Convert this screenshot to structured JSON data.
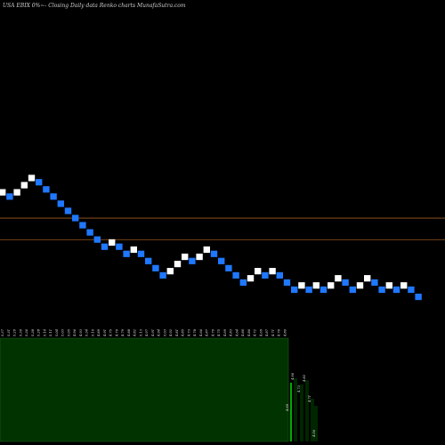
{
  "header": {
    "title": "USA EBIX  0%~-  Closing Daily data  Renko  charts MunafaSutra.com"
  },
  "colors": {
    "background": "#000000",
    "up_brick": "#ffffff",
    "down_brick": "#1f78ff",
    "level_line": "#a15a1e",
    "volume_area": "#003300",
    "volume_border": "#1a5e1a",
    "volume_spike": "#00aa00"
  },
  "chart_data": {
    "type": "renko",
    "title": "USA EBIX  0%~-  Closing Daily data  Renko  charts MunafaSutra.com",
    "brick_size": 0.05,
    "y_range": [
      4.5,
      5.55
    ],
    "levels": [
      5.17,
      5.02
    ],
    "bricks": [
      {
        "close": 5.35,
        "dir": "up"
      },
      {
        "close": 5.3,
        "dir": "down"
      },
      {
        "close": 5.35,
        "dir": "up"
      },
      {
        "close": 5.4,
        "dir": "up"
      },
      {
        "close": 5.45,
        "dir": "up"
      },
      {
        "close": 5.4,
        "dir": "down"
      },
      {
        "close": 5.35,
        "dir": "down"
      },
      {
        "close": 5.3,
        "dir": "down"
      },
      {
        "close": 5.25,
        "dir": "down"
      },
      {
        "close": 5.2,
        "dir": "down"
      },
      {
        "close": 5.15,
        "dir": "down"
      },
      {
        "close": 5.1,
        "dir": "down"
      },
      {
        "close": 5.05,
        "dir": "down"
      },
      {
        "close": 5.0,
        "dir": "down"
      },
      {
        "close": 4.95,
        "dir": "down"
      },
      {
        "close": 5.0,
        "dir": "up"
      },
      {
        "close": 4.95,
        "dir": "down"
      },
      {
        "close": 4.9,
        "dir": "down"
      },
      {
        "close": 4.95,
        "dir": "up"
      },
      {
        "close": 4.9,
        "dir": "down"
      },
      {
        "close": 4.85,
        "dir": "down"
      },
      {
        "close": 4.8,
        "dir": "down"
      },
      {
        "close": 4.75,
        "dir": "down"
      },
      {
        "close": 4.8,
        "dir": "up"
      },
      {
        "close": 4.85,
        "dir": "up"
      },
      {
        "close": 4.9,
        "dir": "up"
      },
      {
        "close": 4.85,
        "dir": "down"
      },
      {
        "close": 4.9,
        "dir": "up"
      },
      {
        "close": 4.95,
        "dir": "up"
      },
      {
        "close": 4.9,
        "dir": "down"
      },
      {
        "close": 4.85,
        "dir": "down"
      },
      {
        "close": 4.8,
        "dir": "down"
      },
      {
        "close": 4.75,
        "dir": "down"
      },
      {
        "close": 4.7,
        "dir": "down"
      },
      {
        "close": 4.75,
        "dir": "up"
      },
      {
        "close": 4.8,
        "dir": "up"
      },
      {
        "close": 4.75,
        "dir": "down"
      },
      {
        "close": 4.8,
        "dir": "up"
      },
      {
        "close": 4.75,
        "dir": "down"
      },
      {
        "close": 4.7,
        "dir": "down"
      },
      {
        "close": 4.65,
        "dir": "down"
      },
      {
        "close": 4.7,
        "dir": "up"
      },
      {
        "close": 4.65,
        "dir": "down"
      },
      {
        "close": 4.7,
        "dir": "up"
      },
      {
        "close": 4.65,
        "dir": "down"
      },
      {
        "close": 4.7,
        "dir": "up"
      },
      {
        "close": 4.75,
        "dir": "up"
      },
      {
        "close": 4.7,
        "dir": "down"
      },
      {
        "close": 4.65,
        "dir": "down"
      },
      {
        "close": 4.7,
        "dir": "up"
      },
      {
        "close": 4.75,
        "dir": "up"
      },
      {
        "close": 4.7,
        "dir": "down"
      },
      {
        "close": 4.65,
        "dir": "down"
      },
      {
        "close": 4.7,
        "dir": "up"
      },
      {
        "close": 4.65,
        "dir": "down"
      },
      {
        "close": 4.7,
        "dir": "up"
      },
      {
        "close": 4.65,
        "dir": "down"
      },
      {
        "close": 4.6,
        "dir": "down"
      }
    ],
    "x_tick_labels": [
      "5.37",
      "5.31",
      "5.29",
      "5.39",
      "5.36",
      "5.38",
      "5.28",
      "5.14",
      "5.11",
      "5.04",
      "5.03",
      "5.05",
      "4.96",
      "4.93",
      "5.34",
      "5.10",
      "4.89",
      "4.91",
      "4.75",
      "4.79",
      "4.79",
      "4.88",
      "4.82",
      "5.13",
      "4.97",
      "4.91",
      "4.94",
      "5.03",
      "4.92",
      "4.81",
      "4.85",
      "4.73",
      "4.78",
      "4.66",
      "4.87",
      "4.79",
      "4.75",
      "4.69",
      "4.83",
      "4.64",
      "4.80",
      "4.86",
      "4.72",
      "4.69",
      "4.87",
      "4.71",
      "4.70",
      "4.80"
    ],
    "volume": {
      "labels": [
        "4.69",
        "4.96",
        "4.73",
        "4.82",
        "4.71",
        "4.56"
      ]
    }
  }
}
